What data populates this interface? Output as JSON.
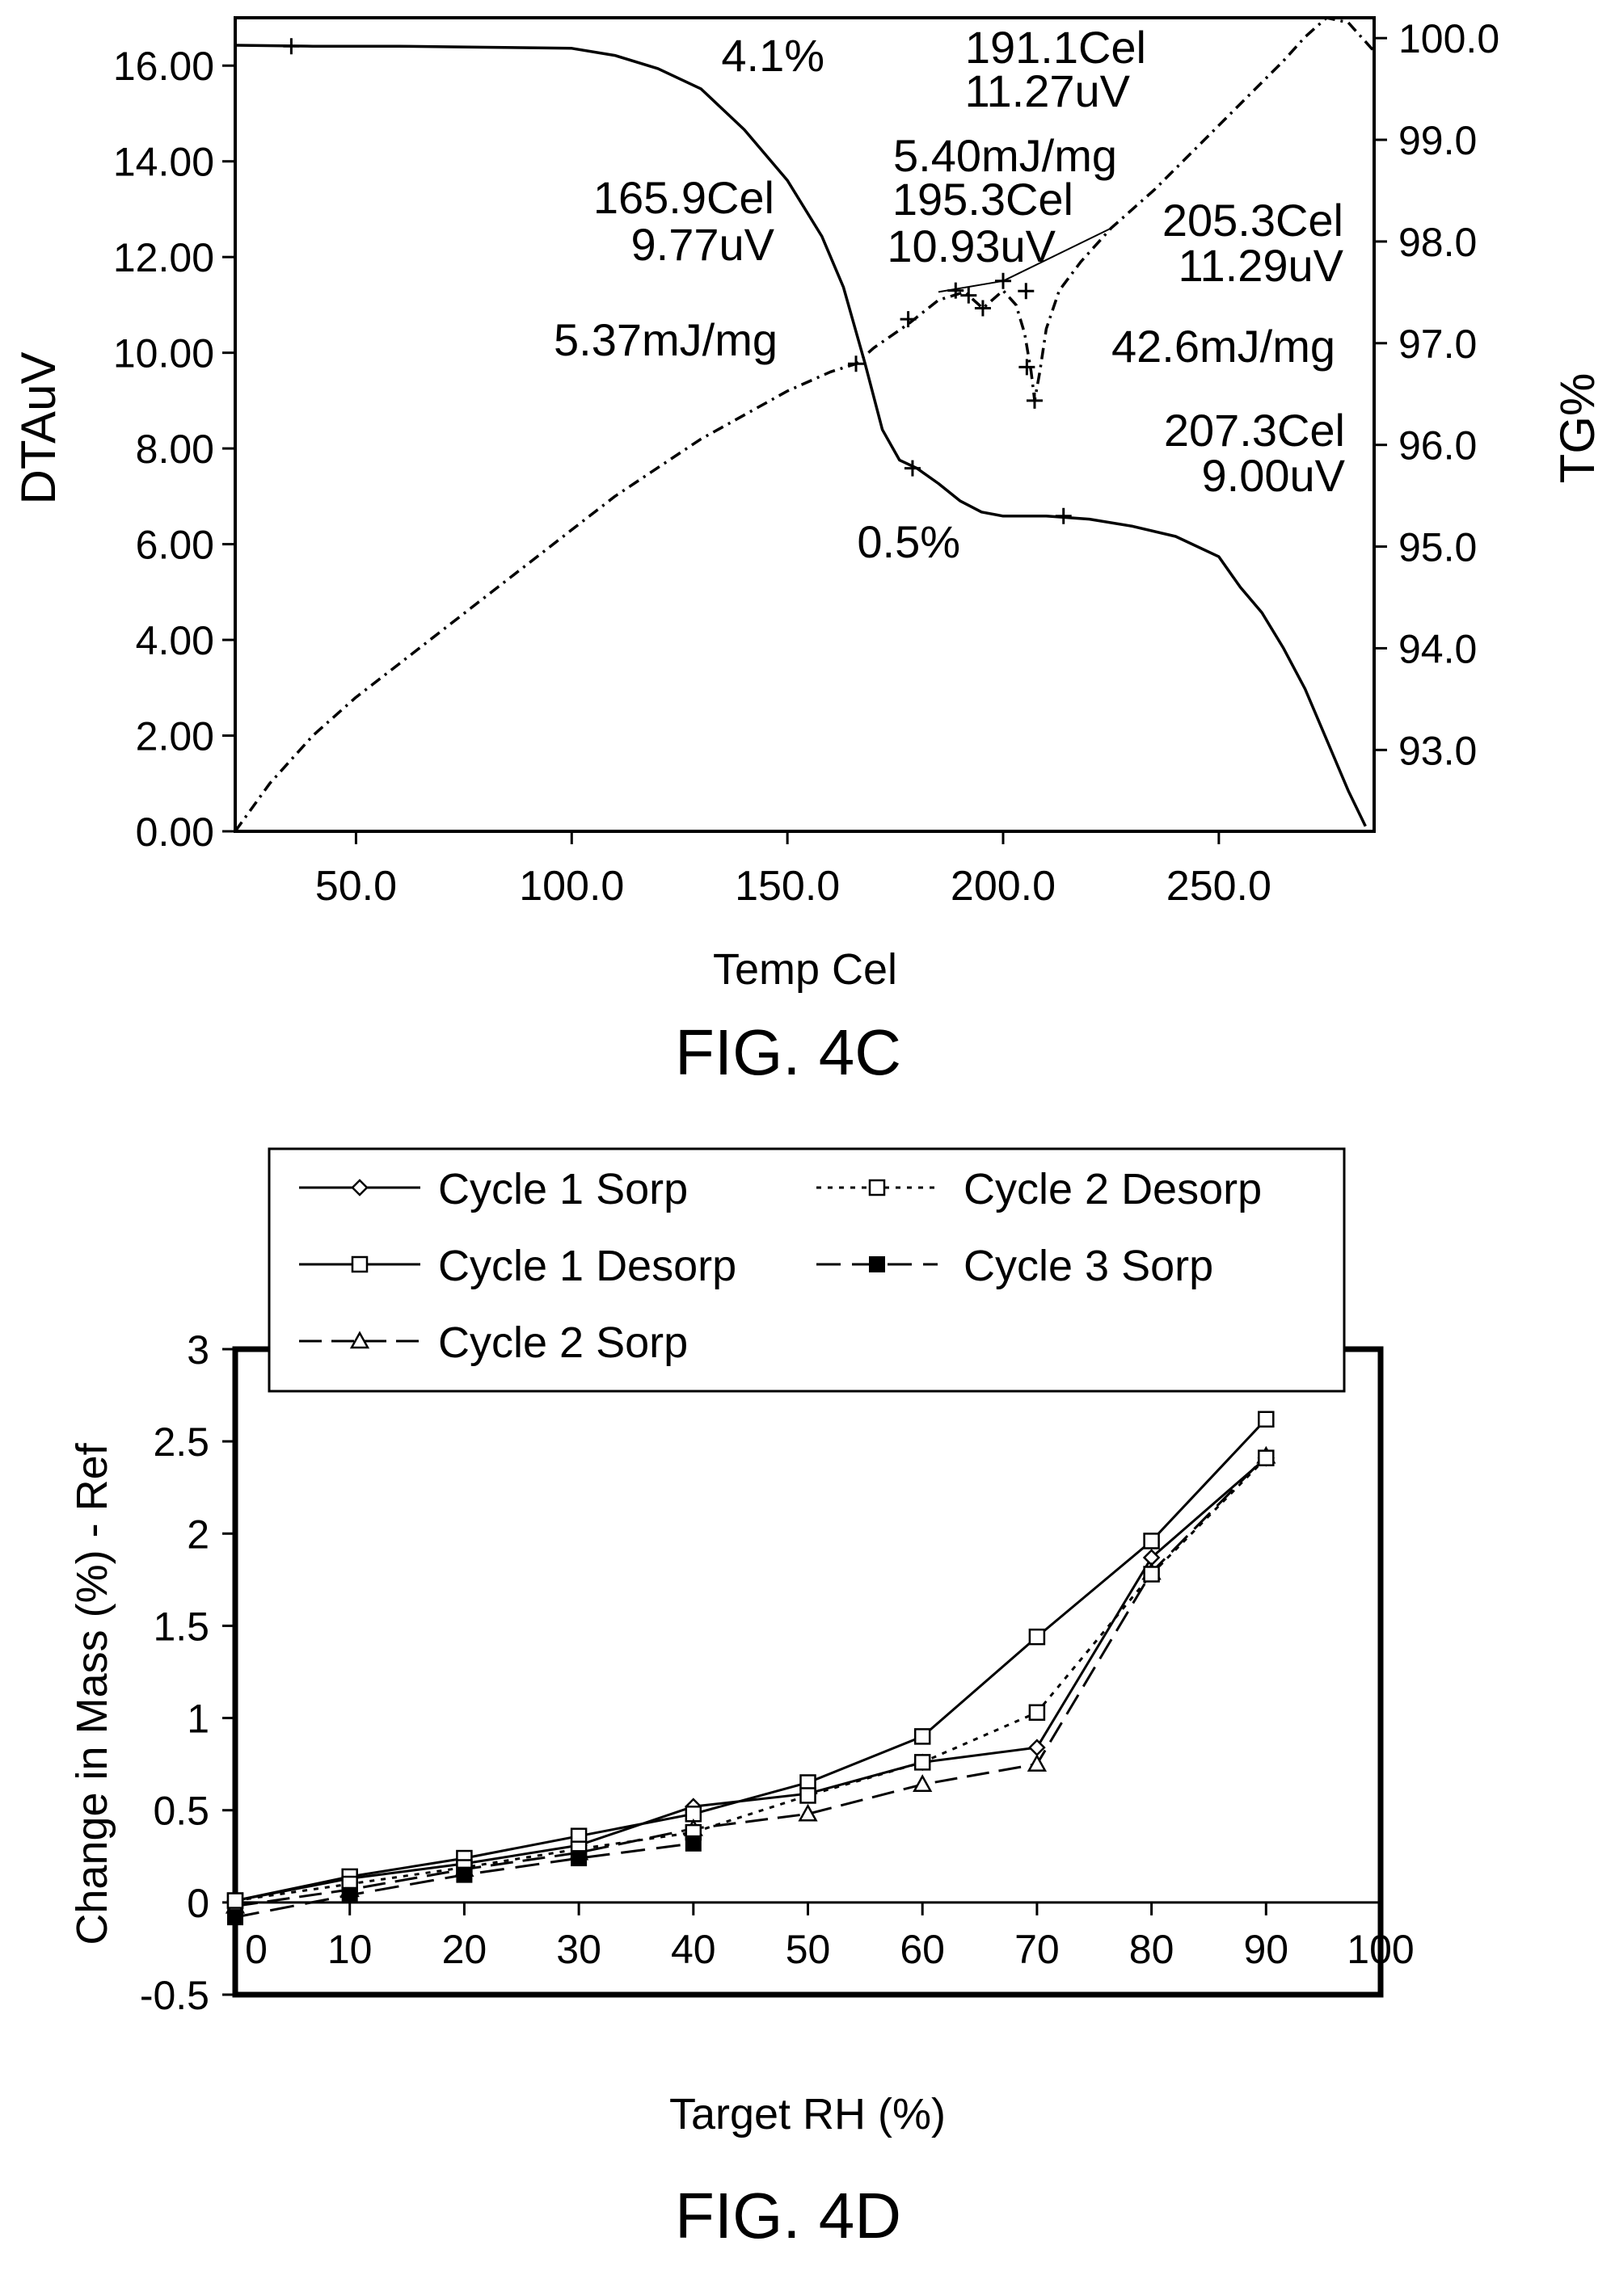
{
  "chart_data": [
    {
      "type": "line",
      "figure_label": "FIG. 4C",
      "xlabel": "Temp Cel",
      "ylabel_left": "DTAuV",
      "ylabel_right": "TG%",
      "xlim": [
        22,
        286
      ],
      "ylim_left": [
        0,
        17
      ],
      "ylim_right": [
        92.2,
        100.2
      ],
      "x_ticks": [
        50,
        100,
        150,
        200,
        250
      ],
      "x_tick_labels": [
        "50.0",
        "100.0",
        "150.0",
        "200.0",
        "250.0"
      ],
      "y_left_ticks": [
        0,
        2,
        4,
        6,
        8,
        10,
        12,
        14,
        16
      ],
      "y_left_tick_labels": [
        "0.00",
        "2.00",
        "4.00",
        "6.00",
        "8.00",
        "10.00",
        "12.00",
        "14.00",
        "16.00"
      ],
      "y_right_ticks": [
        93,
        94,
        95,
        96,
        97,
        98,
        99,
        100
      ],
      "y_right_tick_labels": [
        "93.0",
        "94.0",
        "95.0",
        "96.0",
        "97.0",
        "98.0",
        "99.0",
        "100.0"
      ],
      "series": [
        {
          "axis": "right",
          "style": "solid",
          "points": [
            [
              22,
              99.93
            ],
            [
              40,
              99.92
            ],
            [
              60,
              99.92
            ],
            [
              80,
              99.91
            ],
            [
              100,
              99.9
            ],
            [
              110,
              99.83
            ],
            [
              120,
              99.7
            ],
            [
              130,
              99.5
            ],
            [
              140,
              99.1
            ],
            [
              150,
              98.6
            ],
            [
              158,
              98.05
            ],
            [
              163,
              97.55
            ],
            [
              168,
              96.8
            ],
            [
              172,
              96.15
            ],
            [
              176,
              95.85
            ],
            [
              180,
              95.77
            ],
            [
              185,
              95.62
            ],
            [
              190,
              95.45
            ],
            [
              195,
              95.34
            ],
            [
              200,
              95.3
            ],
            [
              210,
              95.3
            ],
            [
              220,
              95.27
            ],
            [
              230,
              95.2
            ],
            [
              240,
              95.1
            ],
            [
              250,
              94.9
            ],
            [
              255,
              94.6
            ],
            [
              260,
              94.35
            ],
            [
              265,
              94.0
            ],
            [
              270,
              93.6
            ],
            [
              275,
              93.1
            ],
            [
              280,
              92.6
            ],
            [
              284,
              92.25
            ]
          ]
        },
        {
          "axis": "left",
          "style": "dashdot",
          "points": [
            [
              22,
              0.0
            ],
            [
              30,
              1.0
            ],
            [
              40,
              2.0
            ],
            [
              50,
              2.8
            ],
            [
              60,
              3.5
            ],
            [
              70,
              4.2
            ],
            [
              80,
              4.9
            ],
            [
              90,
              5.6
            ],
            [
              100,
              6.3
            ],
            [
              110,
              7.0
            ],
            [
              120,
              7.6
            ],
            [
              130,
              8.2
            ],
            [
              140,
              8.7
            ],
            [
              150,
              9.2
            ],
            [
              160,
              9.6
            ],
            [
              165.9,
              9.77
            ],
            [
              170,
              10.1
            ],
            [
              178,
              10.6
            ],
            [
              185,
              11.1
            ],
            [
              191.1,
              11.27
            ],
            [
              195.3,
              10.93
            ],
            [
              200,
              11.3
            ],
            [
              203,
              11.0
            ],
            [
              205,
              10.4
            ],
            [
              206.5,
              9.6
            ],
            [
              207.3,
              9.0
            ],
            [
              208.5,
              9.6
            ],
            [
              210,
              10.5
            ],
            [
              213,
              11.3
            ],
            [
              218,
              11.9
            ],
            [
              225,
              12.6
            ],
            [
              235,
              13.4
            ],
            [
              245,
              14.3
            ],
            [
              255,
              15.2
            ],
            [
              265,
              16.1
            ],
            [
              270,
              16.6
            ],
            [
              275,
              17.0
            ],
            [
              280,
              16.9
            ],
            [
              284,
              16.5
            ],
            [
              286,
              16.3
            ]
          ]
        },
        {
          "axis": "left",
          "style": "thin",
          "points": [
            [
              185,
              11.27
            ],
            [
              200,
              11.5
            ],
            [
              225,
              12.6
            ]
          ]
        }
      ],
      "markers": [
        {
          "axis": "right",
          "x": 35,
          "y": 99.92
        },
        {
          "axis": "left",
          "x": 165.9,
          "y": 9.77
        },
        {
          "axis": "left",
          "x": 178,
          "y": 10.7
        },
        {
          "axis": "left",
          "x": 189,
          "y": 11.3
        },
        {
          "axis": "left",
          "x": 192,
          "y": 11.2
        },
        {
          "axis": "left",
          "x": 195.3,
          "y": 10.93
        },
        {
          "axis": "left",
          "x": 200,
          "y": 11.5
        },
        {
          "axis": "left",
          "x": 205.3,
          "y": 11.29
        },
        {
          "axis": "left",
          "x": 205.5,
          "y": 9.7
        },
        {
          "axis": "left",
          "x": 207.3,
          "y": 9.0
        },
        {
          "axis": "right",
          "x": 179,
          "y": 95.77
        },
        {
          "axis": "right",
          "x": 214,
          "y": 95.3
        }
      ],
      "annotations": [
        "4.1%",
        "191.1Cel",
        "11.27uV",
        "5.40mJ/mg",
        "165.9Cel",
        "195.3Cel",
        "9.77uV",
        "10.93uV",
        "205.3Cel",
        "11.29uV",
        "5.37mJ/mg",
        "42.6mJ/mg",
        "207.3Cel",
        "9.00uV",
        "0.5%"
      ]
    },
    {
      "type": "line",
      "figure_label": "FIG. 4D",
      "xlabel": "Target RH (%)",
      "ylabel": "Change in Mass (%) - Ref",
      "xlim": [
        0,
        100
      ],
      "ylim": [
        -0.5,
        3
      ],
      "x_ticks": [
        0,
        10,
        20,
        30,
        40,
        50,
        60,
        70,
        80,
        90,
        100
      ],
      "x_tick_labels": [
        "0",
        "10",
        "20",
        "30",
        "40",
        "50",
        "60",
        "70",
        "80",
        "90",
        "100"
      ],
      "y_ticks": [
        -0.5,
        0,
        0.5,
        1,
        1.5,
        2,
        2.5,
        3
      ],
      "y_tick_labels": [
        "-0.5",
        "0",
        "0.5",
        "1",
        "1.5",
        "2",
        "2.5",
        "3"
      ],
      "x": [
        0,
        10,
        20,
        30,
        40,
        50,
        60,
        70,
        80,
        90
      ],
      "series": [
        {
          "name": "Cycle 1 Sorp",
          "marker": "diamond",
          "line": "solid",
          "values": [
            0.01,
            0.13,
            0.21,
            0.31,
            0.52,
            0.59,
            0.76,
            0.84,
            1.87,
            2.41
          ]
        },
        {
          "name": "Cycle 1 Desorp",
          "marker": "square-open",
          "line": "solid",
          "values": [
            0.01,
            0.14,
            0.24,
            0.36,
            0.48,
            0.65,
            0.9,
            1.44,
            1.96,
            2.62
          ]
        },
        {
          "name": "Cycle 2 Sorp",
          "marker": "triangle",
          "line": "longdash",
          "values": [
            -0.02,
            0.07,
            0.18,
            0.27,
            0.4,
            0.48,
            0.64,
            0.75,
            1.79,
            2.42
          ]
        },
        {
          "name": "Cycle 2 Desorp",
          "marker": "square-open",
          "line": "dotted",
          "values": [
            0.01,
            0.1,
            0.19,
            0.29,
            0.38,
            0.58,
            0.76,
            1.03,
            1.78,
            2.41
          ]
        },
        {
          "name": "Cycle 3 Sorp",
          "marker": "square-filled",
          "line": "dash",
          "values": [
            -0.08,
            0.04,
            0.15,
            0.24,
            0.32,
            null,
            null,
            null,
            null,
            null
          ]
        }
      ],
      "legend": {
        "position": "top",
        "columns": [
          [
            "Cycle 1 Sorp",
            "Cycle 1 Desorp",
            "Cycle 2 Sorp"
          ],
          [
            "Cycle 2 Desorp",
            "Cycle 3 Sorp"
          ]
        ]
      }
    }
  ]
}
